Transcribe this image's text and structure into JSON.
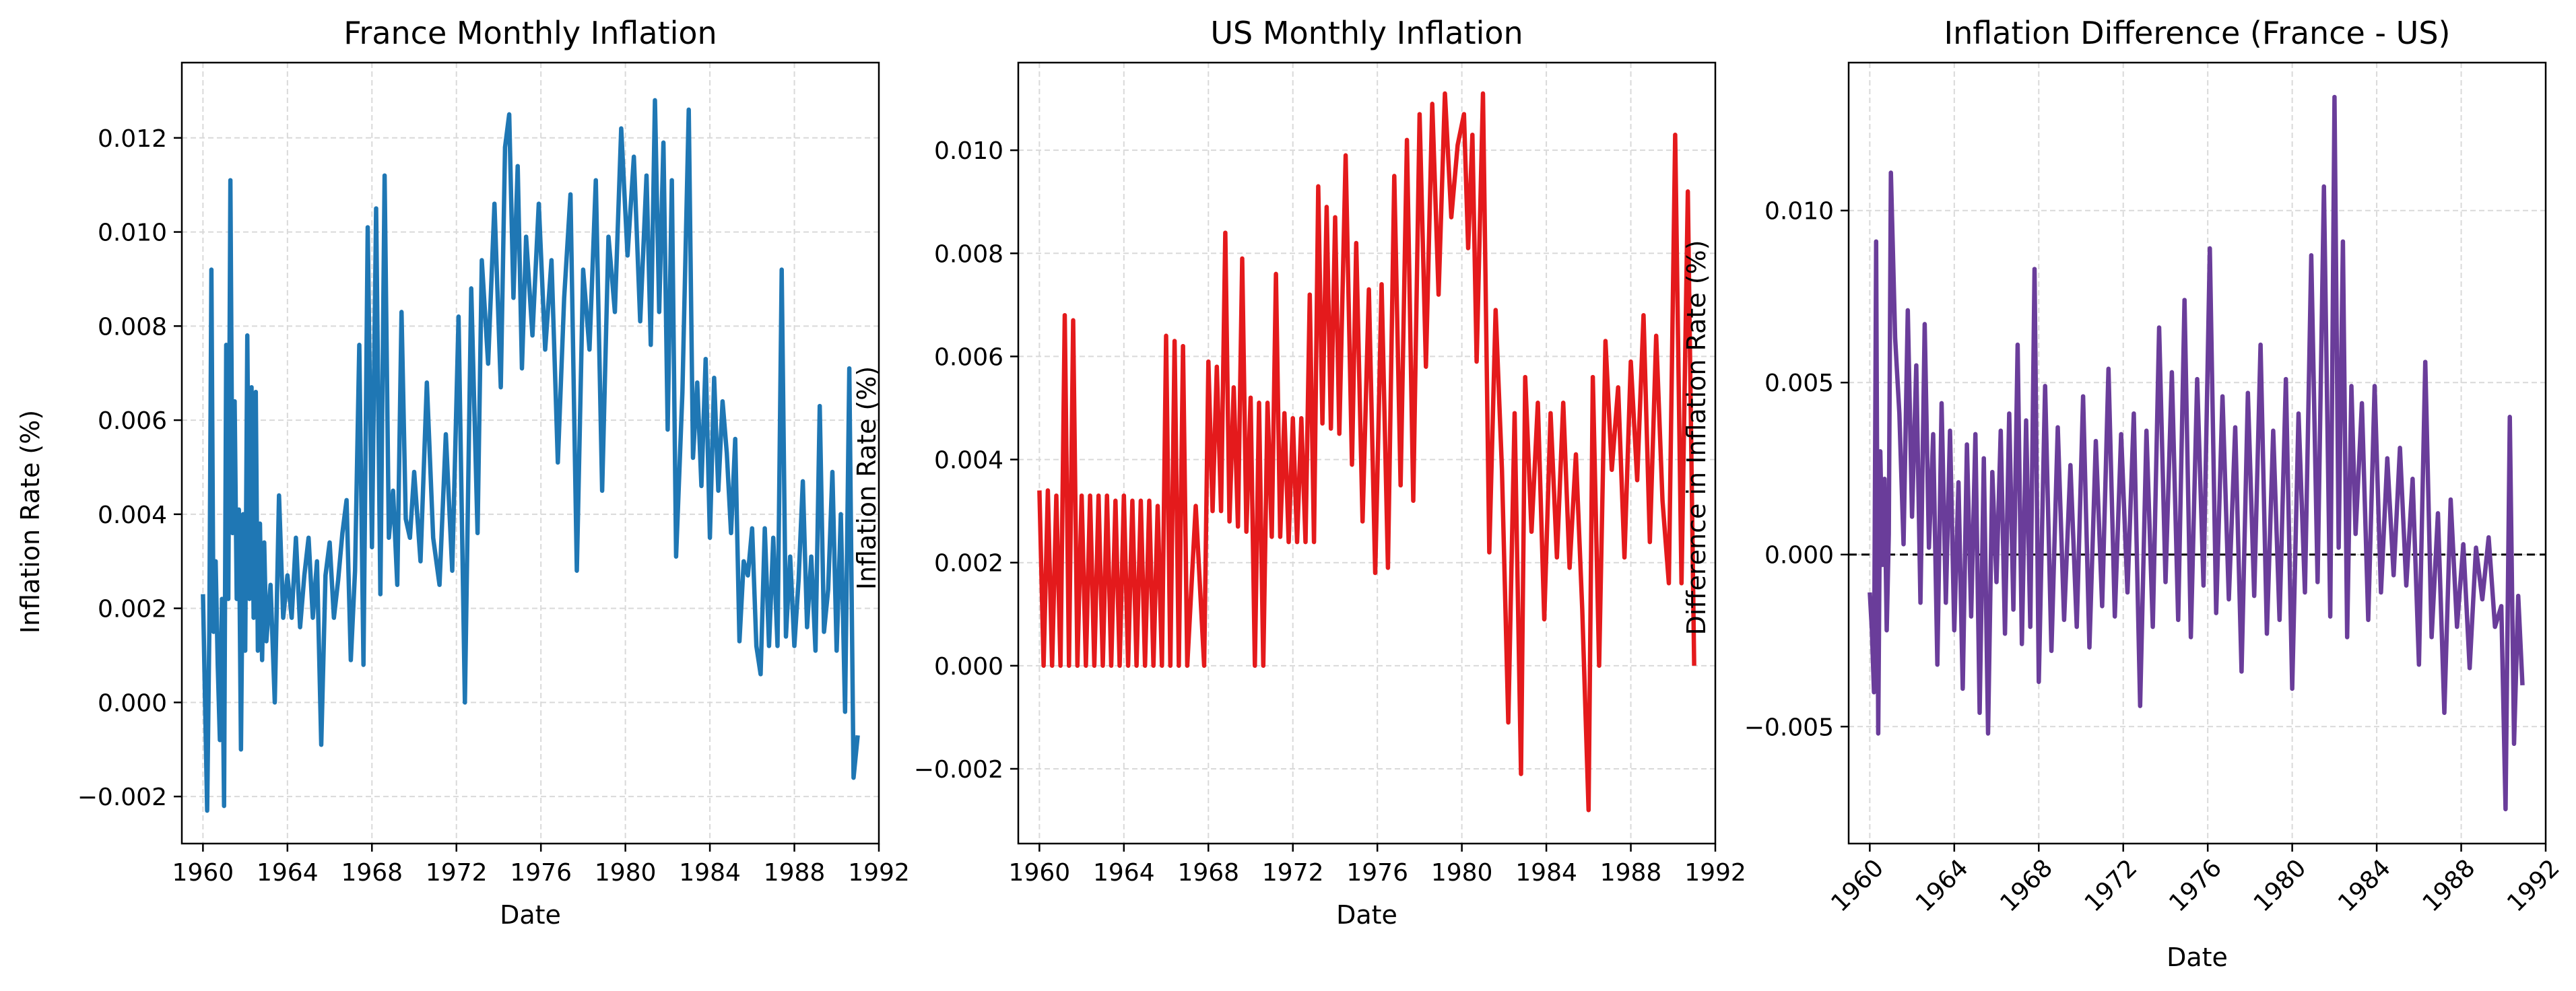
{
  "charts": [
    {
      "type": "line",
      "title": "France Monthly Inflation",
      "xlabel": "Date",
      "ylabel": "Inflation Rate (%)",
      "color": "#1f77b4",
      "xlim": [
        1959.0,
        1992.0
      ],
      "ylim": [
        -0.003,
        0.0136
      ],
      "xticks": [
        "1960",
        "1964",
        "1968",
        "1972",
        "1976",
        "1980",
        "1984",
        "1988",
        "1992"
      ],
      "yticks": [
        "−0.002",
        "0.000",
        "0.002",
        "0.004",
        "0.006",
        "0.008",
        "0.010",
        "0.012"
      ],
      "grid": true,
      "series": [
        {
          "x": [
            1960.0,
            1960.1,
            1960.2,
            1960.3,
            1960.4,
            1960.5,
            1960.6,
            1960.7,
            1960.8,
            1960.9,
            1961.0,
            1961.1,
            1961.2,
            1961.3,
            1961.4,
            1961.5,
            1961.6,
            1961.7,
            1961.8,
            1961.9,
            1962.0,
            1962.1,
            1962.2,
            1962.3,
            1962.4,
            1962.5,
            1962.6,
            1962.7,
            1962.8,
            1962.9,
            1963.0,
            1963.2,
            1963.4,
            1963.6,
            1963.8,
            1964.0,
            1964.2,
            1964.4,
            1964.6,
            1964.8,
            1965.0,
            1965.2,
            1965.4,
            1965.6,
            1965.8,
            1966.0,
            1966.2,
            1966.4,
            1966.6,
            1966.8,
            1967.0,
            1967.2,
            1967.4,
            1967.6,
            1967.8,
            1968.0,
            1968.2,
            1968.4,
            1968.6,
            1968.8,
            1969.0,
            1969.2,
            1969.4,
            1969.6,
            1969.8,
            1970.0,
            1970.3,
            1970.6,
            1970.9,
            1971.2,
            1971.5,
            1971.8,
            1972.1,
            1972.4,
            1972.7,
            1973.0,
            1973.2,
            1973.5,
            1973.8,
            1974.1,
            1974.3,
            1974.5,
            1974.7,
            1974.9,
            1975.1,
            1975.3,
            1975.6,
            1975.9,
            1976.2,
            1976.5,
            1976.8,
            1977.1,
            1977.4,
            1977.7,
            1978.0,
            1978.3,
            1978.6,
            1978.9,
            1979.2,
            1979.5,
            1979.8,
            1980.1,
            1980.4,
            1980.7,
            1981.0,
            1981.2,
            1981.4,
            1981.6,
            1981.8,
            1982.0,
            1982.2,
            1982.4,
            1982.7,
            1983.0,
            1983.2,
            1983.4,
            1983.6,
            1983.8,
            1984.0,
            1984.2,
            1984.4,
            1984.6,
            1984.8,
            1985.0,
            1985.2,
            1985.4,
            1985.6,
            1985.8,
            1986.0,
            1986.2,
            1986.4,
            1986.6,
            1986.8,
            1987.0,
            1987.2,
            1987.4,
            1987.6,
            1987.8,
            1988.0,
            1988.2,
            1988.4,
            1988.6,
            1988.8,
            1989.0,
            1989.2,
            1989.4,
            1989.6,
            1989.8,
            1990.0,
            1990.2,
            1990.4,
            1990.6,
            1990.8,
            1991.0
          ],
          "y": [
            0.0023,
            0.0,
            -0.0023,
            0.0015,
            0.0092,
            0.0015,
            0.003,
            0.0008,
            -0.0008,
            0.0022,
            -0.0022,
            0.0076,
            0.0022,
            0.0111,
            0.0036,
            0.0064,
            0.0022,
            0.0041,
            -0.001,
            0.004,
            0.0011,
            0.0078,
            0.0022,
            0.0067,
            0.0018,
            0.0066,
            0.0011,
            0.0038,
            0.0009,
            0.0034,
            0.0013,
            0.0025,
            0.0,
            0.0044,
            0.0018,
            0.0027,
            0.0018,
            0.0035,
            0.0016,
            0.0027,
            0.0035,
            0.0018,
            0.003,
            -0.0009,
            0.0027,
            0.0034,
            0.0018,
            0.0026,
            0.0036,
            0.0043,
            0.0009,
            0.0028,
            0.0076,
            0.0008,
            0.0101,
            0.0033,
            0.0105,
            0.0023,
            0.0112,
            0.0035,
            0.0045,
            0.0025,
            0.0083,
            0.0039,
            0.0035,
            0.0049,
            0.003,
            0.0068,
            0.0035,
            0.0025,
            0.0057,
            0.0028,
            0.0082,
            0.0,
            0.0088,
            0.0036,
            0.0094,
            0.0072,
            0.0106,
            0.0067,
            0.0118,
            0.0125,
            0.0086,
            0.0114,
            0.0071,
            0.0099,
            0.0078,
            0.0106,
            0.0075,
            0.0094,
            0.0051,
            0.0086,
            0.0108,
            0.0028,
            0.0092,
            0.0075,
            0.0111,
            0.0045,
            0.0099,
            0.0083,
            0.0122,
            0.0095,
            0.0116,
            0.0081,
            0.0112,
            0.0076,
            0.0128,
            0.0083,
            0.0119,
            0.0058,
            0.0111,
            0.0031,
            0.0066,
            0.0126,
            0.0052,
            0.0068,
            0.0046,
            0.0073,
            0.0035,
            0.0069,
            0.0045,
            0.0064,
            0.0053,
            0.0036,
            0.0056,
            0.0013,
            0.003,
            0.0027,
            0.0037,
            0.0012,
            0.0006,
            0.0037,
            0.0012,
            0.0035,
            0.0012,
            0.0092,
            0.0014,
            0.0031,
            0.0012,
            0.0026,
            0.0047,
            0.0016,
            0.0031,
            0.0011,
            0.0063,
            0.0015,
            0.0024,
            0.0049,
            0.0011,
            0.004,
            -0.0002,
            0.0071,
            -0.0016,
            -0.0007
          ]
        }
      ]
    },
    {
      "type": "line",
      "title": "US Monthly Inflation",
      "xlabel": "Date",
      "ylabel": "Inflation Rate (%)",
      "color": "#e41a1c",
      "xlim": [
        1959.0,
        1992.0
      ],
      "ylim": [
        -0.00345,
        0.0117
      ],
      "xticks": [
        "1960",
        "1964",
        "1968",
        "1972",
        "1976",
        "1980",
        "1984",
        "1988",
        "1992"
      ],
      "yticks": [
        "−0.002",
        "0.000",
        "0.002",
        "0.004",
        "0.006",
        "0.008",
        "0.010"
      ],
      "grid": true,
      "series": [
        {
          "x": [
            1960.0,
            1960.2,
            1960.4,
            1960.6,
            1960.8,
            1961.0,
            1961.2,
            1961.4,
            1961.6,
            1961.8,
            1962.0,
            1962.2,
            1962.4,
            1962.6,
            1962.8,
            1963.0,
            1963.2,
            1963.4,
            1963.6,
            1963.8,
            1964.0,
            1964.2,
            1964.4,
            1964.6,
            1964.8,
            1965.0,
            1965.2,
            1965.4,
            1965.6,
            1965.8,
            1966.0,
            1966.2,
            1966.4,
            1966.6,
            1966.8,
            1967.0,
            1967.4,
            1967.8,
            1968.0,
            1968.2,
            1968.4,
            1968.6,
            1968.8,
            1969.0,
            1969.2,
            1969.4,
            1969.6,
            1969.8,
            1970.0,
            1970.2,
            1970.4,
            1970.6,
            1970.8,
            1971.0,
            1971.2,
            1971.4,
            1971.6,
            1971.8,
            1972.0,
            1972.2,
            1972.4,
            1972.6,
            1972.8,
            1973.0,
            1973.2,
            1973.4,
            1973.6,
            1973.8,
            1974.0,
            1974.2,
            1974.5,
            1974.8,
            1975.0,
            1975.3,
            1975.6,
            1975.9,
            1976.2,
            1976.5,
            1976.8,
            1977.1,
            1977.4,
            1977.7,
            1978.0,
            1978.3,
            1978.6,
            1978.9,
            1979.2,
            1979.5,
            1979.8,
            1980.1,
            1980.3,
            1980.5,
            1980.7,
            1981.0,
            1981.3,
            1981.6,
            1981.9,
            1982.2,
            1982.5,
            1982.8,
            1983.0,
            1983.3,
            1983.6,
            1983.9,
            1984.2,
            1984.5,
            1984.8,
            1985.1,
            1985.4,
            1985.7,
            1986.0,
            1986.2,
            1986.5,
            1986.8,
            1987.1,
            1987.4,
            1987.7,
            1988.0,
            1988.3,
            1988.6,
            1988.9,
            1989.2,
            1989.5,
            1989.8,
            1990.1,
            1990.4,
            1990.7,
            1991.0
          ],
          "y": [
            0.0034,
            0.0,
            0.0034,
            0.0,
            0.0033,
            0.0,
            0.0068,
            0.0,
            0.0067,
            0.0,
            0.0033,
            0.0,
            0.0033,
            0.0,
            0.0033,
            0.0,
            0.0033,
            0.0,
            0.0032,
            0.0,
            0.0033,
            0.0,
            0.0032,
            0.0,
            0.0032,
            0.0,
            0.0032,
            0.0,
            0.0031,
            0.0,
            0.0064,
            0.0,
            0.0063,
            0.0,
            0.0062,
            0.0,
            0.0031,
            0.0,
            0.0059,
            0.003,
            0.0058,
            0.003,
            0.0084,
            0.0028,
            0.0054,
            0.0027,
            0.0079,
            0.0026,
            0.0052,
            0.0,
            0.0051,
            0.0,
            0.0051,
            0.0025,
            0.0076,
            0.0025,
            0.0049,
            0.0024,
            0.0048,
            0.0024,
            0.0048,
            0.0024,
            0.0072,
            0.0024,
            0.0093,
            0.0047,
            0.0089,
            0.0046,
            0.0087,
            0.0045,
            0.0099,
            0.0039,
            0.0082,
            0.0028,
            0.0073,
            0.0018,
            0.0074,
            0.0019,
            0.0095,
            0.0035,
            0.0102,
            0.0032,
            0.0107,
            0.0058,
            0.0109,
            0.0072,
            0.0111,
            0.0087,
            0.0101,
            0.0107,
            0.0081,
            0.0103,
            0.0059,
            0.0111,
            0.0022,
            0.0069,
            0.0038,
            -0.0011,
            0.0049,
            -0.0021,
            0.0056,
            0.0026,
            0.0051,
            0.0009,
            0.0049,
            0.0021,
            0.0051,
            0.0019,
            0.0041,
            0.0011,
            -0.0028,
            0.0056,
            0.0,
            0.0063,
            0.0038,
            0.0054,
            0.0021,
            0.0059,
            0.0036,
            0.0068,
            0.0024,
            0.0064,
            0.0032,
            0.0016,
            0.0103,
            0.0016,
            0.0092,
            0.0
          ]
        }
      ]
    },
    {
      "type": "line",
      "title": "Inflation Difference (France - US)",
      "xlabel": "Date",
      "ylabel": "Difference in Inflation Rate (%)",
      "color": "#6a3d9a",
      "xlim": [
        1959.0,
        1992.0
      ],
      "ylim": [
        -0.0084,
        0.0143
      ],
      "xticks": [
        "1960",
        "1964",
        "1968",
        "1972",
        "1976",
        "1980",
        "1984",
        "1988",
        "1992"
      ],
      "yticks": [
        "−0.005",
        "0.000",
        "0.005",
        "0.010"
      ],
      "grid": true,
      "reference_line": {
        "y": 0.0,
        "style": "dashed"
      },
      "series": [
        {
          "x": [
            1960.0,
            1960.1,
            1960.2,
            1960.3,
            1960.4,
            1960.5,
            1960.6,
            1960.7,
            1960.8,
            1960.9,
            1961.0,
            1961.2,
            1961.4,
            1961.6,
            1961.8,
            1962.0,
            1962.2,
            1962.4,
            1962.6,
            1962.8,
            1963.0,
            1963.2,
            1963.4,
            1963.6,
            1963.8,
            1964.0,
            1964.2,
            1964.4,
            1964.6,
            1964.8,
            1965.0,
            1965.2,
            1965.4,
            1965.6,
            1965.8,
            1966.0,
            1966.2,
            1966.4,
            1966.6,
            1966.8,
            1967.0,
            1967.2,
            1967.4,
            1967.6,
            1967.8,
            1968.0,
            1968.3,
            1968.6,
            1968.9,
            1969.2,
            1969.5,
            1969.8,
            1970.1,
            1970.4,
            1970.7,
            1971.0,
            1971.3,
            1971.6,
            1971.9,
            1972.2,
            1972.5,
            1972.8,
            1973.1,
            1973.4,
            1973.7,
            1974.0,
            1974.3,
            1974.6,
            1974.9,
            1975.2,
            1975.5,
            1975.8,
            1976.1,
            1976.4,
            1976.7,
            1977.0,
            1977.3,
            1977.6,
            1977.9,
            1978.2,
            1978.5,
            1978.8,
            1979.1,
            1979.4,
            1979.7,
            1980.0,
            1980.3,
            1980.6,
            1980.9,
            1981.2,
            1981.5,
            1981.8,
            1982.0,
            1982.2,
            1982.4,
            1982.6,
            1982.8,
            1983.0,
            1983.3,
            1983.6,
            1983.9,
            1984.2,
            1984.5,
            1984.8,
            1985.1,
            1985.4,
            1985.7,
            1986.0,
            1986.3,
            1986.6,
            1986.9,
            1987.2,
            1987.5,
            1987.8,
            1988.1,
            1988.4,
            1988.7,
            1989.0,
            1989.3,
            1989.6,
            1989.9,
            1990.1,
            1990.3,
            1990.5,
            1990.7,
            1990.9
          ],
          "y": [
            -0.0011,
            -0.0022,
            -0.004,
            0.0091,
            -0.0052,
            0.003,
            -0.0003,
            0.0022,
            -0.0022,
            0.0006,
            0.0111,
            0.0063,
            0.0041,
            0.0003,
            0.0071,
            0.0011,
            0.0055,
            -0.0014,
            0.0067,
            0.0002,
            0.0035,
            -0.0032,
            0.0044,
            -0.0014,
            0.0036,
            -0.0022,
            0.0021,
            -0.0039,
            0.0032,
            -0.0018,
            0.0035,
            -0.0046,
            0.0028,
            -0.0052,
            0.0024,
            -0.0008,
            0.0036,
            -0.0023,
            0.0041,
            -0.0016,
            0.0061,
            -0.0026,
            0.0039,
            -0.0021,
            0.0083,
            -0.0037,
            0.0049,
            -0.0028,
            0.0037,
            -0.0019,
            0.0026,
            -0.0021,
            0.0046,
            -0.0027,
            0.0033,
            -0.0015,
            0.0054,
            -0.0018,
            0.0035,
            -0.0011,
            0.0041,
            -0.0044,
            0.0036,
            -0.0021,
            0.0066,
            -0.0008,
            0.0053,
            -0.0019,
            0.0074,
            -0.0024,
            0.0051,
            -0.0009,
            0.0089,
            -0.0017,
            0.0046,
            -0.0013,
            0.0037,
            -0.0034,
            0.0047,
            -0.0012,
            0.0061,
            -0.0023,
            0.0036,
            -0.0019,
            0.0051,
            -0.0039,
            0.0041,
            -0.0011,
            0.0087,
            -0.0008,
            0.0107,
            -0.0018,
            0.0133,
            0.0002,
            0.0091,
            -0.0024,
            0.0049,
            0.0006,
            0.0044,
            -0.0019,
            0.0049,
            -0.0011,
            0.0028,
            -0.0006,
            0.0031,
            -0.0009,
            0.0022,
            -0.0032,
            0.0056,
            -0.0024,
            0.0012,
            -0.0046,
            0.0016,
            -0.0021,
            0.0003,
            -0.0033,
            0.0002,
            -0.0013,
            0.0005,
            -0.0021,
            -0.0015,
            -0.0074,
            0.004,
            -0.0055,
            -0.0012,
            -0.0038
          ]
        }
      ]
    }
  ]
}
